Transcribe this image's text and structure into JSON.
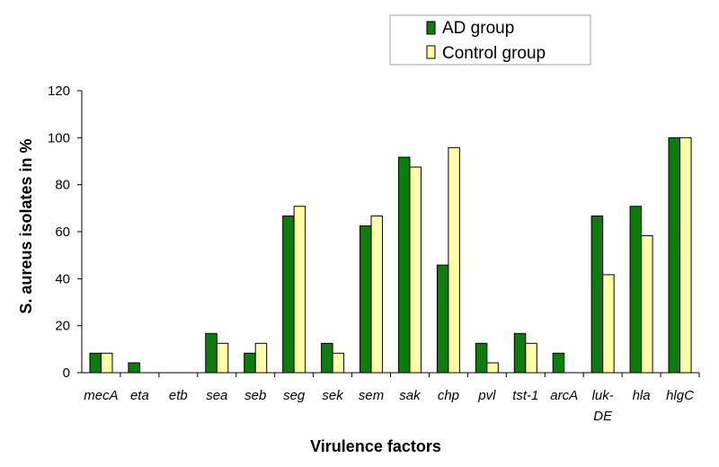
{
  "chart_data": {
    "type": "bar",
    "xlabel": "Virulence factors",
    "ylabel": "S. aureus isolates in %",
    "ylim": [
      0,
      120
    ],
    "yticks": [
      "0",
      "20",
      "40",
      "60",
      "80",
      "100",
      "120"
    ],
    "grid": false,
    "legend_position": "top-right",
    "categories": [
      "mecA",
      "eta",
      "etb",
      "sea",
      "seb",
      "seg",
      "sek",
      "sem",
      "sak",
      "chp",
      "pvl",
      "tst-1",
      "arcA",
      "luk-DE",
      "hla",
      "hlgC"
    ],
    "category_lines": [
      [
        "mecA"
      ],
      [
        "eta"
      ],
      [
        "etb"
      ],
      [
        "sea"
      ],
      [
        "seb"
      ],
      [
        "seg"
      ],
      [
        "sek"
      ],
      [
        "sem"
      ],
      [
        "sak"
      ],
      [
        "chp"
      ],
      [
        "pvl"
      ],
      [
        "tst-1"
      ],
      [
        "arcA"
      ],
      [
        "luk-",
        "DE"
      ],
      [
        "hla"
      ],
      [
        "hlgC"
      ]
    ],
    "series": [
      {
        "name": "AD group",
        "color": "#0a7d0a",
        "values": [
          8.3,
          4.2,
          0,
          16.7,
          8.3,
          66.7,
          12.5,
          62.5,
          91.7,
          45.8,
          12.5,
          16.7,
          8.3,
          66.7,
          70.8,
          100
        ]
      },
      {
        "name": "Control group",
        "color": "#ffffa6",
        "values": [
          8.3,
          0,
          0,
          12.5,
          12.5,
          70.8,
          8.3,
          66.7,
          87.5,
          95.8,
          4.2,
          12.5,
          0,
          41.7,
          58.3,
          100
        ]
      }
    ]
  }
}
